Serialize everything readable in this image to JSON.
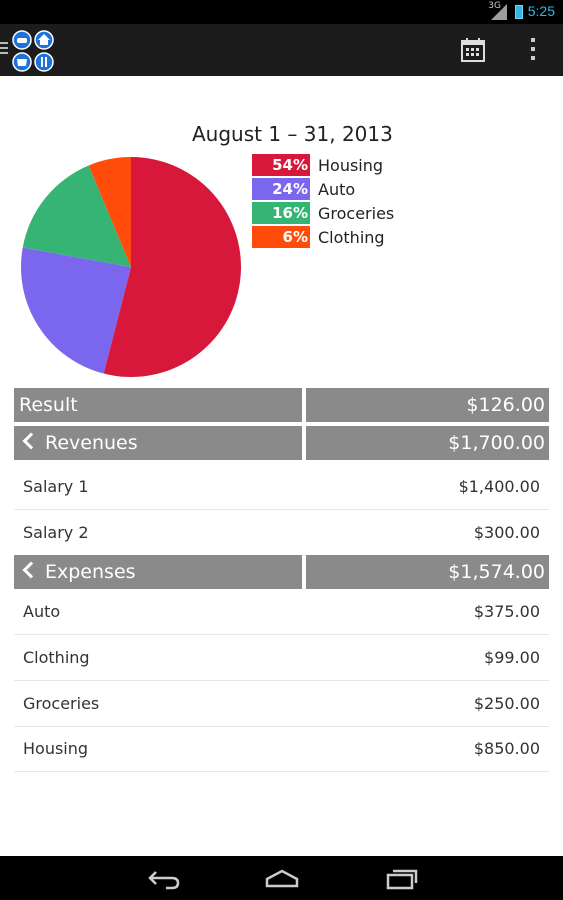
{
  "status_bar": {
    "time": "5:25",
    "signal_label": "3G"
  },
  "action_bar": {
    "app_icon": "budget-app-icon",
    "calendar_icon": "calendar-icon",
    "overflow_icon": "overflow-menu-icon"
  },
  "chart_data": {
    "type": "pie",
    "title": "August 1 – 31, 2013",
    "series": [
      {
        "name": "Housing",
        "value": 850,
        "percent_label": "54%",
        "color": "#d7183b"
      },
      {
        "name": "Auto",
        "value": 375,
        "percent_label": "24%",
        "color": "#7b67ee"
      },
      {
        "name": "Groceries",
        "value": 250,
        "percent_label": "16%",
        "color": "#35b474"
      },
      {
        "name": "Clothing",
        "value": 99,
        "percent_label": "6%",
        "color": "#ff4c0a"
      }
    ]
  },
  "summary": {
    "result": {
      "label": "Result",
      "value": "$126.00"
    },
    "revenues": {
      "label": "Revenues",
      "value": "$1,700.00"
    },
    "expenses": {
      "label": "Expenses",
      "value": "$1,574.00"
    }
  },
  "revenues": [
    {
      "name": "Salary 1",
      "amount": "$1,400.00"
    },
    {
      "name": "Salary 2",
      "amount": "$300.00"
    }
  ],
  "expenses": [
    {
      "name": "Auto",
      "amount": "$375.00"
    },
    {
      "name": "Clothing",
      "amount": "$99.00"
    },
    {
      "name": "Groceries",
      "amount": "$250.00"
    },
    {
      "name": "Housing",
      "amount": "$850.00"
    }
  ],
  "nav_bar": {
    "back_icon": "back-icon",
    "home_icon": "home-icon",
    "recents_icon": "recents-icon"
  },
  "colors": {
    "header_bg": "#8a8a8a",
    "action_bar_bg": "#1c1c1c",
    "status_accent": "#33b5e5"
  }
}
